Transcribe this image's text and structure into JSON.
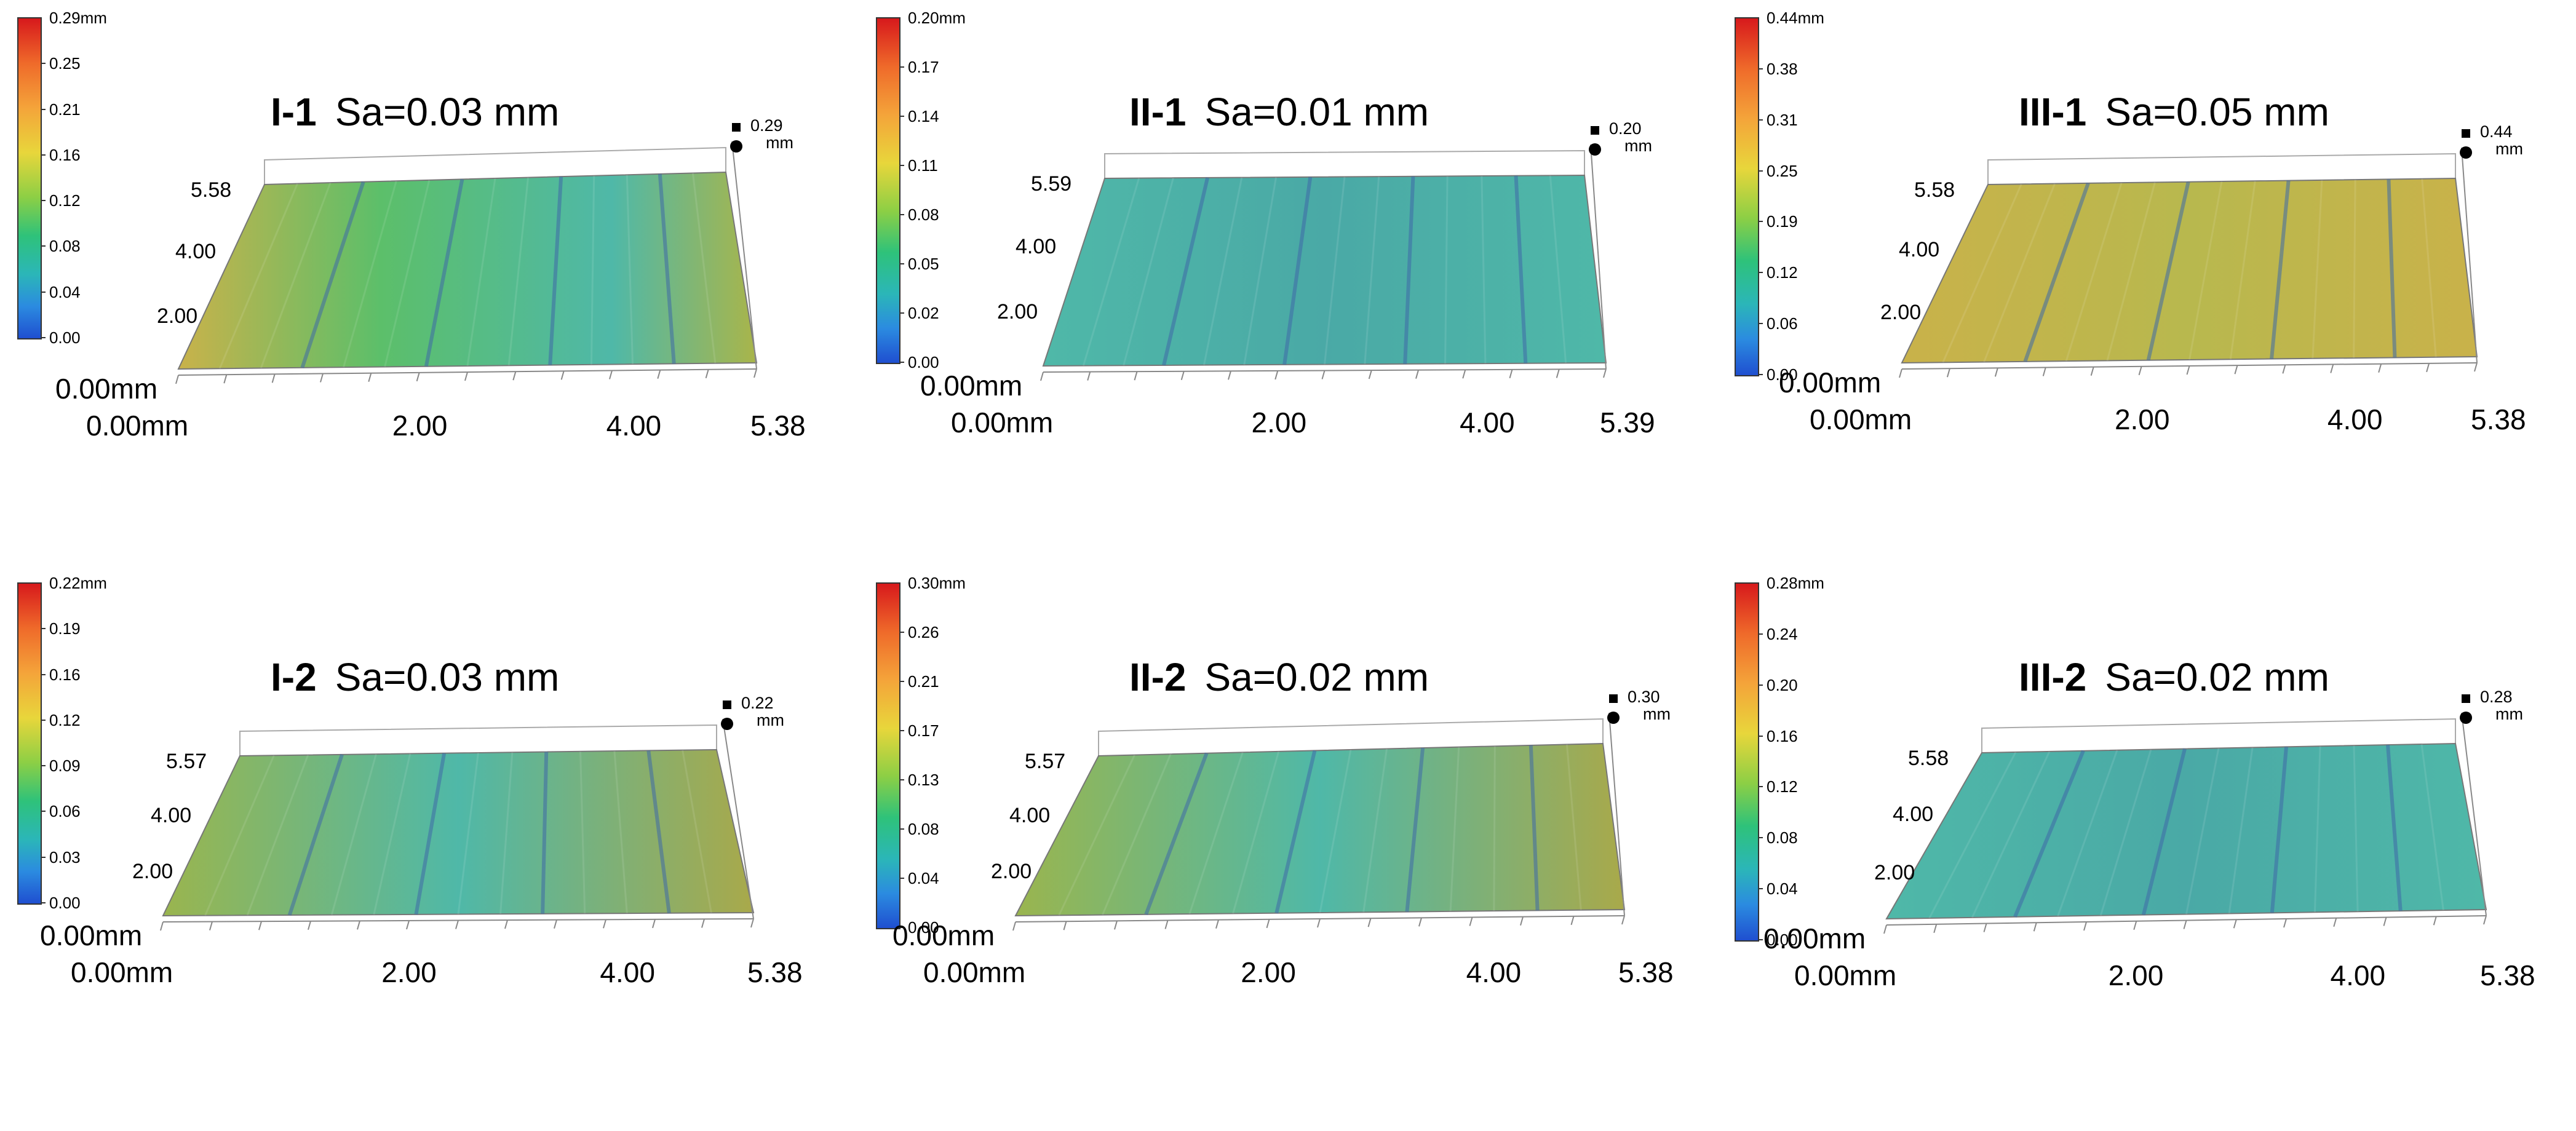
{
  "panels": [
    {
      "label": "I-1",
      "sa": "Sa=0.03 mm",
      "cmax": "0.29mm",
      "cticks": [
        "0.25",
        "0.21",
        "0.16",
        "0.12",
        "0.08",
        "0.04",
        "0.00"
      ],
      "zmax": "0.29",
      "zunit": "mm",
      "y_labels": [
        "5.58",
        "4.00",
        "2.00",
        "0.00mm"
      ],
      "x_labels": [
        "0.00mm",
        "2.00",
        "4.00",
        "5.38"
      ],
      "surface": "tilted-green-yellow"
    },
    {
      "label": "II-1",
      "sa": "Sa=0.01 mm",
      "cmax": "0.20mm",
      "cticks": [
        "0.17",
        "0.14",
        "0.11",
        "0.08",
        "0.05",
        "0.02",
        "0.00"
      ],
      "zmax": "0.20",
      "zunit": "mm",
      "y_labels": [
        "5.59",
        "4.00",
        "2.00",
        "0.00mm"
      ],
      "x_labels": [
        "0.00mm",
        "2.00",
        "4.00",
        "5.39"
      ],
      "surface": "flat-cyan"
    },
    {
      "label": "III-1",
      "sa": "Sa=0.05 mm",
      "cmax": "0.44mm",
      "cticks": [
        "0.38",
        "0.31",
        "0.25",
        "0.19",
        "0.12",
        "0.06",
        "0.00"
      ],
      "zmax": "0.44",
      "zunit": "mm",
      "y_labels": [
        "5.58",
        "4.00",
        "2.00",
        "0.00mm"
      ],
      "x_labels": [
        "0.00mm",
        "2.00",
        "4.00",
        "5.38"
      ],
      "surface": "yellow-grooved"
    },
    {
      "label": "I-2",
      "sa": "Sa=0.03 mm",
      "cmax": "0.22mm",
      "cticks": [
        "0.19",
        "0.16",
        "0.12",
        "0.09",
        "0.06",
        "0.03",
        "0.00"
      ],
      "zmax": "0.22",
      "zunit": "mm",
      "y_labels": [
        "5.57",
        "4.00",
        "2.00",
        "0.00mm"
      ],
      "x_labels": [
        "0.00mm",
        "2.00",
        "4.00",
        "5.38"
      ],
      "surface": "green-striped"
    },
    {
      "label": "II-2",
      "sa": "Sa=0.02 mm",
      "cmax": "0.30mm",
      "cticks": [
        "0.26",
        "0.21",
        "0.17",
        "0.13",
        "0.08",
        "0.04",
        "0.00"
      ],
      "zmax": "0.30",
      "zunit": "mm",
      "y_labels": [
        "5.57",
        "4.00",
        "2.00",
        "0.00mm"
      ],
      "x_labels": [
        "0.00mm",
        "2.00",
        "4.00",
        "5.38"
      ],
      "surface": "green-striped"
    },
    {
      "label": "III-2",
      "sa": "Sa=0.02 mm",
      "cmax": "0.28mm",
      "cticks": [
        "0.24",
        "0.20",
        "0.16",
        "0.12",
        "0.08",
        "0.04",
        "0.00"
      ],
      "zmax": "0.28",
      "zunit": "mm",
      "y_labels": [
        "5.58",
        "4.00",
        "2.00",
        "0.00mm"
      ],
      "x_labels": [
        "0.00mm",
        "2.00",
        "4.00",
        "5.38"
      ],
      "surface": "flat-cyan"
    }
  ],
  "colors": {
    "scale_top": "#d7191c",
    "scale_mid": "#8ccf45",
    "scale_bottom": "#1f4fd0",
    "surface_green": "#5cbf6a",
    "surface_cyan": "#4fb8a8",
    "surface_yellow": "#c9b24a",
    "groove_blue": "#3f6aa8"
  }
}
